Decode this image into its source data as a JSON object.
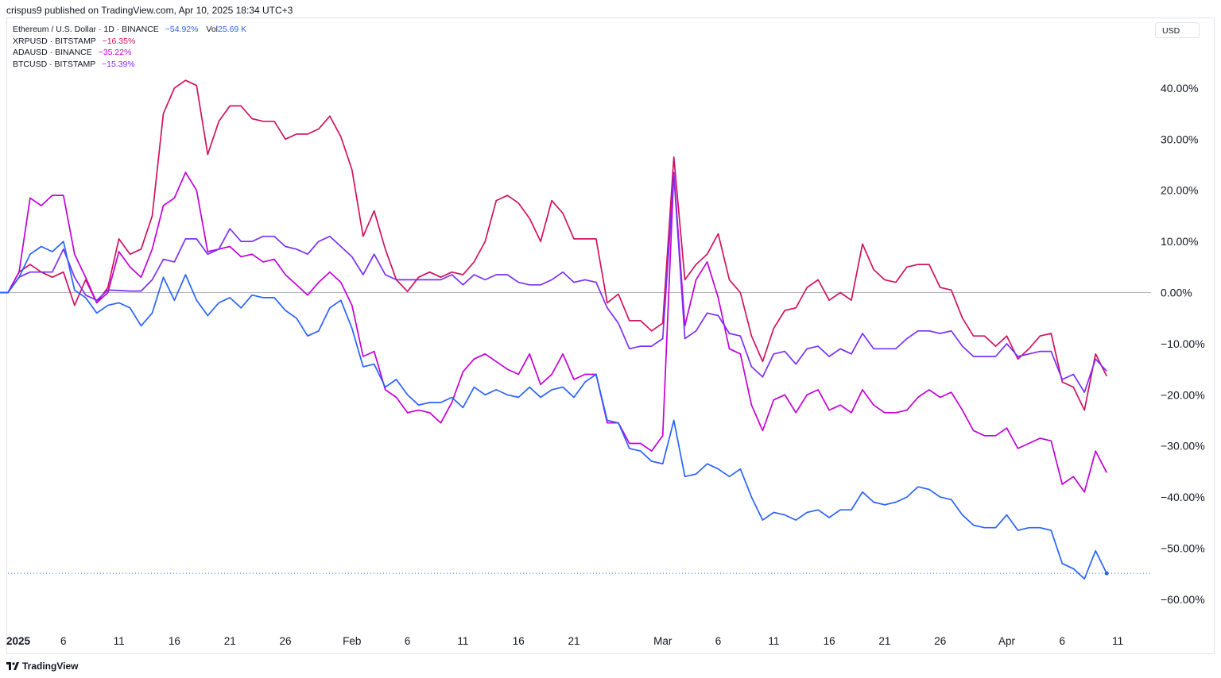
{
  "header": {
    "publish_text": "crispus9 published on TradingView.com, Apr 10, 2025 18:34 UTC+3"
  },
  "legend": {
    "rows": [
      {
        "name": "Ethereum / U.S. Dollar · 1D · BINANCE",
        "change": "−54.92%",
        "color": "#2962ff",
        "vol_label": "Vol",
        "vol_value": "25.69 K"
      },
      {
        "name": "XRPUSD · BITSTAMP",
        "change": "−16.35%",
        "color": "#d0125f"
      },
      {
        "name": "ADAUSD · BINANCE",
        "change": "−35.22%",
        "color": "#c200d8"
      },
      {
        "name": "BTCUSD · BITSTAMP",
        "change": "−15.39%",
        "color": "#7b2ff7"
      }
    ]
  },
  "currency_button": "USD",
  "footer": {
    "brand": "TradingView"
  },
  "chart_data": {
    "type": "line",
    "y_unit": "%",
    "ylim": [
      -65,
      45
    ],
    "grid": false,
    "y_ticks": [
      "40.00%",
      "30.00%",
      "20.00%",
      "10.00%",
      "0.00%",
      "−10.00%",
      "−20.00%",
      "−30.00%",
      "−40.00%",
      "−50.00%",
      "−60.00%"
    ],
    "y_tick_values": [
      40,
      30,
      20,
      10,
      0,
      -10,
      -20,
      -30,
      -40,
      -50,
      -60
    ],
    "x_range": [
      "2025-01-01",
      "2025-04-14"
    ],
    "x_ticks": [
      {
        "date": "2025-01-01",
        "label": "2025"
      },
      {
        "date": "2025-01-06",
        "label": "6"
      },
      {
        "date": "2025-01-11",
        "label": "11"
      },
      {
        "date": "2025-01-16",
        "label": "16"
      },
      {
        "date": "2025-01-21",
        "label": "21"
      },
      {
        "date": "2025-01-26",
        "label": "26"
      },
      {
        "date": "2025-02-01",
        "label": "Feb"
      },
      {
        "date": "2025-02-06",
        "label": "6"
      },
      {
        "date": "2025-02-11",
        "label": "11"
      },
      {
        "date": "2025-02-16",
        "label": "16"
      },
      {
        "date": "2025-02-21",
        "label": "21"
      },
      {
        "date": "2025-03-01",
        "label": "Mar"
      },
      {
        "date": "2025-03-06",
        "label": "6"
      },
      {
        "date": "2025-03-11",
        "label": "11"
      },
      {
        "date": "2025-03-16",
        "label": "16"
      },
      {
        "date": "2025-03-21",
        "label": "21"
      },
      {
        "date": "2025-03-26",
        "label": "26"
      },
      {
        "date": "2025-04-01",
        "label": "Apr"
      },
      {
        "date": "2025-04-06",
        "label": "6"
      },
      {
        "date": "2025-04-11",
        "label": "11"
      }
    ],
    "start_date": "2024-12-31",
    "zero_line": 0,
    "last_value_marker": {
      "series": "ETHUSD",
      "value": -54.92
    },
    "series": [
      {
        "name": "XRPUSD",
        "color": "#d0125f",
        "values": [
          0,
          0,
          4,
          5.5,
          4,
          3,
          4,
          -2.5,
          2.5,
          -2,
          1,
          10.5,
          7.5,
          8.5,
          15,
          35,
          40,
          41.5,
          40.5,
          27,
          33.5,
          36.5,
          36.5,
          34,
          33.5,
          33.5,
          30,
          31,
          31,
          32,
          34.5,
          30.5,
          24,
          11,
          16,
          8.5,
          2.5,
          0.2,
          3,
          4,
          3,
          4,
          3.5,
          6,
          10,
          18,
          19,
          17.5,
          14.5,
          10,
          18,
          15.5,
          10.5,
          10.5,
          10.5,
          -2,
          -0.3,
          -5.5,
          -5.5,
          -7.5,
          -6,
          26.5,
          2.5,
          5.5,
          7.5,
          11.5,
          2.5,
          0,
          -8.5,
          -13.5,
          -7,
          -3.5,
          -3,
          1,
          2.5,
          -1.5,
          0,
          -1.5,
          9.5,
          4.5,
          2.5,
          2,
          5,
          5.5,
          5.5,
          1,
          0.5,
          -5,
          -8.5,
          -8.5,
          -10.5,
          -8.5,
          -13,
          -11,
          -8.5,
          -8,
          -17.5,
          -18.5,
          -23,
          -12,
          -16.35
        ]
      },
      {
        "name": "ADAUSD",
        "color": "#c200d8",
        "values": [
          0,
          0,
          4,
          18.5,
          17,
          19,
          19,
          7.5,
          3,
          -2,
          0,
          8,
          5,
          3,
          8.5,
          17,
          18.5,
          23.5,
          20,
          8,
          8.5,
          9,
          7,
          7.5,
          6,
          6.5,
          3.5,
          1.5,
          -0.5,
          2,
          4,
          2,
          -2.5,
          -12.5,
          -11.5,
          -19,
          -20.5,
          -23.5,
          -23,
          -23.5,
          -25.5,
          -21.5,
          -15.5,
          -13,
          -12,
          -13.5,
          -15,
          -16,
          -12,
          -18,
          -16,
          -12,
          -17,
          -16,
          -16,
          -25.5,
          -25.5,
          -29.5,
          -29.5,
          -31,
          -28,
          23.5,
          -6.5,
          2.5,
          6,
          -1,
          -11,
          -12,
          -22,
          -27,
          -21,
          -20,
          -23.5,
          -20,
          -19,
          -23,
          -22,
          -23.5,
          -19,
          -22,
          -23.5,
          -23.5,
          -23,
          -20.5,
          -19,
          -20.5,
          -19.5,
          -23,
          -27,
          -28,
          -28,
          -26.5,
          -30.5,
          -29.5,
          -28.5,
          -29,
          -37.5,
          -36,
          -39,
          -31,
          -35.22
        ]
      },
      {
        "name": "BTCUSD",
        "color": "#7b2ff7",
        "values": [
          0,
          0,
          3,
          4,
          4,
          4,
          8.5,
          3,
          -0.5,
          -1.5,
          0.5,
          0.4,
          0.3,
          0.3,
          2.5,
          6.5,
          6,
          10.5,
          10.5,
          7.5,
          8.5,
          12.5,
          10,
          10,
          11,
          11,
          9,
          8.5,
          7.5,
          10,
          11,
          9,
          7,
          3.5,
          7.5,
          3.5,
          2.5,
          2.5,
          2.5,
          2.5,
          2.5,
          3.5,
          1.5,
          3.5,
          2.5,
          3.5,
          3.5,
          2,
          1.5,
          1.5,
          2.5,
          4,
          2,
          2.5,
          2,
          -3,
          -6,
          -11,
          -10.5,
          -10.5,
          -9,
          23,
          -9,
          -7.5,
          -4,
          -4.5,
          -8,
          -8.5,
          -14.5,
          -16.5,
          -12,
          -11.5,
          -14,
          -11,
          -10.5,
          -12.5,
          -11,
          -12,
          -8,
          -11,
          -11,
          -11,
          -9,
          -7.5,
          -7.5,
          -8,
          -7.5,
          -10.5,
          -12.5,
          -12.5,
          -12.5,
          -10,
          -12.5,
          -12,
          -11.5,
          -11.5,
          -17,
          -16,
          -19.5,
          -13,
          -15.39
        ]
      },
      {
        "name": "ETHUSD",
        "color": "#2962ff",
        "values": [
          0,
          0,
          3,
          7.5,
          9,
          8,
          10,
          0.5,
          -1,
          -4,
          -2.5,
          -2,
          -3,
          -6.5,
          -4,
          3,
          -1.5,
          3.5,
          -1.5,
          -4.5,
          -2,
          -1,
          -3,
          -0.5,
          -1,
          -1,
          -3.5,
          -5,
          -8.5,
          -7.5,
          -3,
          -1.5,
          -7,
          -14.5,
          -14,
          -18.5,
          -17,
          -20,
          -22,
          -21.5,
          -21.5,
          -20.5,
          -22.5,
          -18.5,
          -20,
          -19,
          -20,
          -20.5,
          -18.5,
          -20.5,
          -19,
          -18.5,
          -20.5,
          -17.5,
          -16,
          -25,
          -25.5,
          -30.5,
          -31,
          -33,
          -33.5,
          -25,
          -36,
          -35.5,
          -33.5,
          -34.5,
          -36,
          -34.5,
          -40,
          -44.5,
          -43,
          -43.5,
          -44.5,
          -43,
          -42.5,
          -44,
          -42.5,
          -42.5,
          -39,
          -41,
          -41.5,
          -41,
          -40,
          -38,
          -38.5,
          -40,
          -40.5,
          -43.5,
          -45.5,
          -46,
          -46,
          -43.5,
          -46.5,
          -46,
          -46,
          -46.5,
          -53,
          -54,
          -56,
          -50.5,
          -54.92
        ]
      }
    ]
  }
}
